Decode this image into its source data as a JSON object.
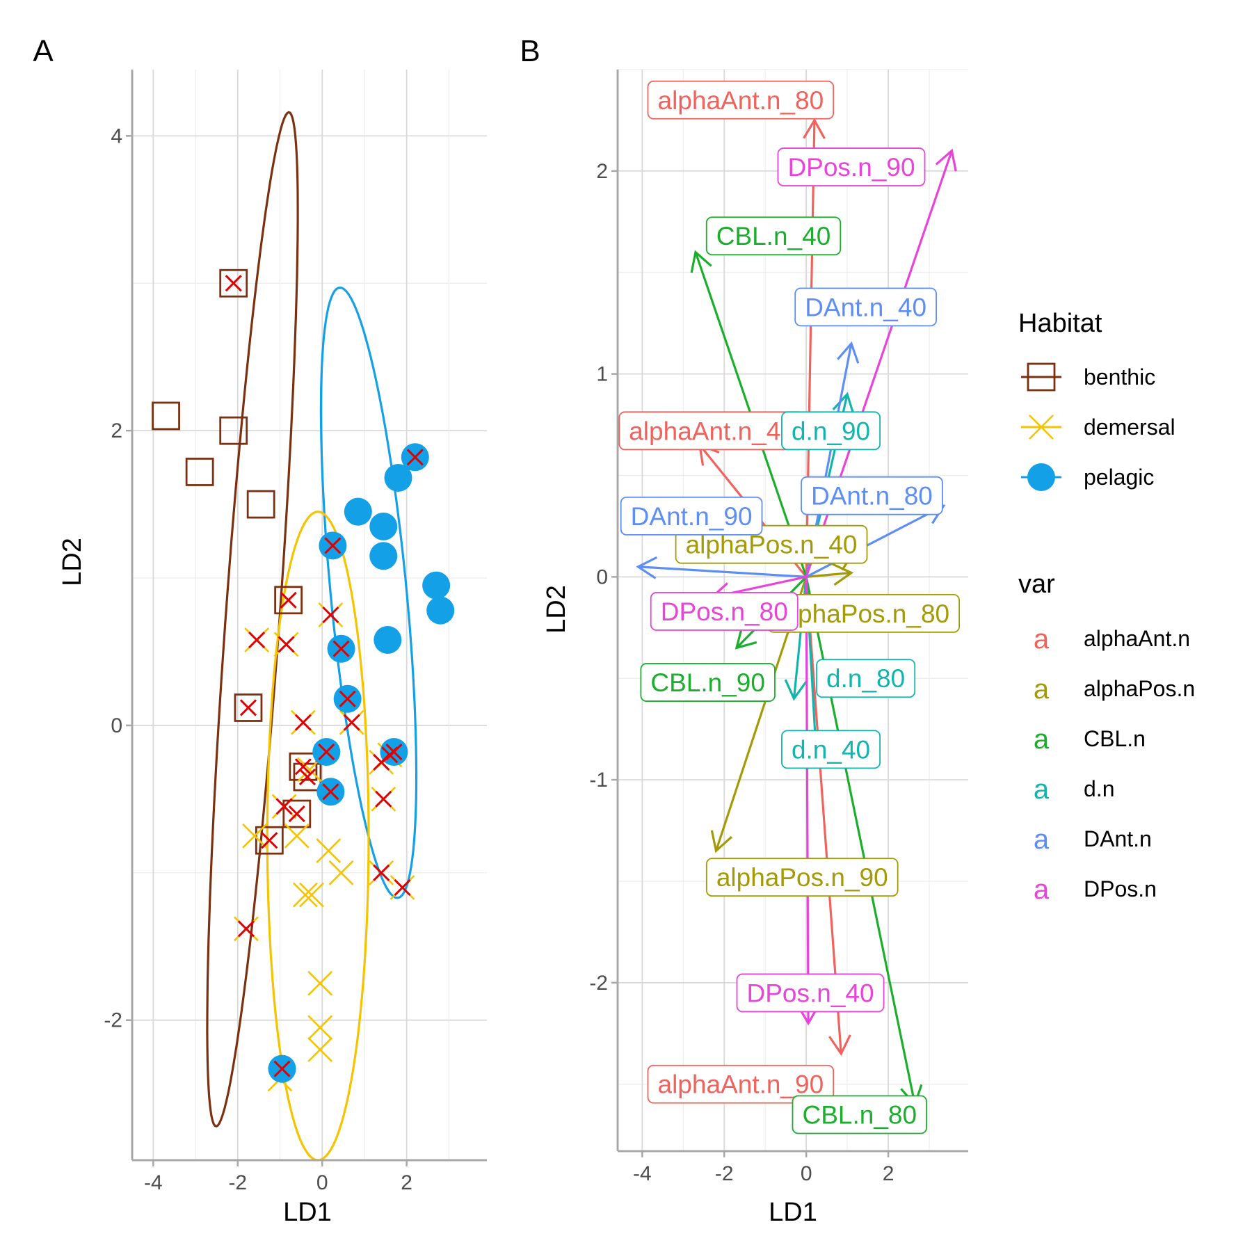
{
  "chart_data": [
    {
      "panel": "A",
      "type": "scatter",
      "xlabel": "LD1",
      "ylabel": "LD2",
      "xlim": [
        -4.5,
        3.9
      ],
      "ylim": [
        -2.95,
        4.45
      ],
      "xticks": [
        "-4",
        "-2",
        "0",
        "2"
      ],
      "xtick_values": [
        -4,
        -2,
        0,
        2
      ],
      "yticks": [
        "-2",
        "0",
        "2",
        "4"
      ],
      "ytick_values": [
        -2,
        0,
        2,
        4
      ],
      "grid": true,
      "legend": {
        "title": "Habitat",
        "entries": [
          {
            "label": "benthic",
            "color": "#7B3010",
            "shape": "square-open"
          },
          {
            "label": "demersal",
            "color": "#F5C400",
            "shape": "cross"
          },
          {
            "label": "pelagic",
            "color": "#14A0E6",
            "shape": "circle-filled"
          }
        ]
      },
      "misclassified_marker": {
        "color": "#E00000",
        "shape": "cross"
      },
      "ellipses": [
        {
          "group": "benthic",
          "color": "#7B3010",
          "center": [
            -1.65,
            0.72
          ],
          "semi_axes": [
            0.62,
            3.55
          ],
          "angle_deg": 14.5
        },
        {
          "group": "pelagic",
          "color": "#14A0E6",
          "center": [
            1.1,
            0.9
          ],
          "semi_axes": [
            0.85,
            2.2
          ],
          "angle_deg": -21.5
        },
        {
          "group": "demersal",
          "color": "#F5C400",
          "center": [
            -0.1,
            -0.75
          ],
          "semi_axes": [
            2.2,
            1.2
          ],
          "angle_deg": 90
        }
      ],
      "series": [
        {
          "name": "benthic",
          "points": [
            [
              -2.1,
              3.0,
              1
            ],
            [
              -3.7,
              2.1,
              0
            ],
            [
              -2.1,
              2.0,
              0
            ],
            [
              -2.9,
              1.72,
              0
            ],
            [
              -1.45,
              1.5,
              0
            ],
            [
              -0.8,
              0.85,
              1
            ],
            [
              -1.75,
              0.12,
              1
            ],
            [
              -0.45,
              -0.28,
              1
            ],
            [
              -0.35,
              -0.35,
              1
            ],
            [
              -0.6,
              -0.6,
              1
            ],
            [
              -1.25,
              -0.78,
              1
            ]
          ]
        },
        {
          "name": "demersal",
          "points": [
            [
              0.2,
              0.75,
              1
            ],
            [
              -1.55,
              0.58,
              1
            ],
            [
              -0.85,
              0.55,
              1
            ],
            [
              -0.45,
              0.02,
              1
            ],
            [
              0.7,
              0.02,
              1
            ],
            [
              1.4,
              -0.25,
              1
            ],
            [
              1.6,
              -0.2,
              1
            ],
            [
              -0.9,
              -0.55,
              1
            ],
            [
              1.45,
              -0.5,
              1
            ],
            [
              -0.3,
              -0.3,
              0
            ],
            [
              -1.6,
              -0.75,
              0
            ],
            [
              -0.6,
              -0.75,
              0
            ],
            [
              0.15,
              -0.85,
              0
            ],
            [
              -0.4,
              -1.15,
              0
            ],
            [
              -0.25,
              -1.15,
              0
            ],
            [
              0.45,
              -1.0,
              0
            ],
            [
              1.4,
              -1.0,
              1
            ],
            [
              1.9,
              -1.1,
              1
            ],
            [
              -1.8,
              -1.38,
              1
            ],
            [
              -0.05,
              -1.75,
              0
            ],
            [
              -0.05,
              -2.05,
              0
            ],
            [
              -0.05,
              -2.2,
              0
            ],
            [
              -1.0,
              -2.4,
              0
            ]
          ]
        },
        {
          "name": "pelagic",
          "points": [
            [
              2.2,
              1.82,
              1
            ],
            [
              1.8,
              1.68,
              0
            ],
            [
              0.85,
              1.45,
              0
            ],
            [
              1.45,
              1.35,
              0
            ],
            [
              0.25,
              1.22,
              1
            ],
            [
              1.45,
              1.15,
              0
            ],
            [
              2.7,
              0.95,
              0
            ],
            [
              2.8,
              0.78,
              0
            ],
            [
              1.55,
              0.58,
              0
            ],
            [
              0.45,
              0.52,
              1
            ],
            [
              0.6,
              0.18,
              1
            ],
            [
              1.7,
              -0.18,
              1
            ],
            [
              0.1,
              -0.18,
              1
            ],
            [
              0.2,
              -0.45,
              1
            ],
            [
              -0.95,
              -2.33,
              1
            ]
          ]
        }
      ]
    },
    {
      "panel": "B",
      "type": "vector",
      "xlabel": "LD1",
      "ylabel": "LD2",
      "xlim": [
        -4.6,
        3.95
      ],
      "ylim": [
        -2.83,
        2.5
      ],
      "xticks": [
        "-4",
        "-2",
        "0",
        "2"
      ],
      "xtick_values": [
        -4,
        -2,
        0,
        2
      ],
      "yticks": [
        "-2",
        "-1",
        "0",
        "1",
        "2"
      ],
      "ytick_values": [
        -2,
        -1,
        0,
        1,
        2
      ],
      "grid": true,
      "legend": {
        "title": "var",
        "key_glyph": "a",
        "entries": [
          {
            "label": "alphaAnt.n",
            "color": "#F0625C"
          },
          {
            "label": "alphaPos.n",
            "color": "#A39A07"
          },
          {
            "label": "CBL.n",
            "color": "#1BAE2C"
          },
          {
            "label": "d.n",
            "color": "#11B5AD"
          },
          {
            "label": "DAnt.n",
            "color": "#5E8EF3"
          },
          {
            "label": "DPos.n",
            "color": "#E844DA"
          }
        ]
      },
      "vectors": [
        {
          "label": "alphaAnt.n_80",
          "var": "alphaAnt.n",
          "x": 0.2,
          "y": 2.25,
          "label_pos": [
            -1.6,
            2.35
          ]
        },
        {
          "label": "alphaAnt.n_40",
          "var": "alphaAnt.n",
          "x": -2.6,
          "y": 0.65,
          "label_pos": [
            -2.3,
            0.72
          ]
        },
        {
          "label": "alphaAnt.n_90",
          "var": "alphaAnt.n",
          "x": 0.85,
          "y": -2.35,
          "label_pos": [
            -1.6,
            -2.5
          ]
        },
        {
          "label": "alphaPos.n_40",
          "var": "alphaPos.n",
          "x": 1.15,
          "y": 0.12,
          "label_pos": [
            -0.85,
            0.16
          ]
        },
        {
          "label": "alphaPos.n_80",
          "var": "alphaPos.n",
          "x": 1.1,
          "y": 0.02,
          "label_pos": [
            1.4,
            -0.18
          ]
        },
        {
          "label": "alphaPos.n_90",
          "var": "alphaPos.n",
          "x": -2.2,
          "y": -1.35,
          "label_pos": [
            -0.1,
            -1.48
          ]
        },
        {
          "label": "CBL.n_40",
          "var": "CBL.n",
          "x": -2.7,
          "y": 1.6,
          "label_pos": [
            -0.8,
            1.68
          ]
        },
        {
          "label": "CBL.n_90",
          "var": "CBL.n",
          "x": -1.7,
          "y": -0.35,
          "label_pos": [
            -2.4,
            -0.52
          ]
        },
        {
          "label": "CBL.n_80",
          "var": "CBL.n",
          "x": 2.65,
          "y": -2.6,
          "label_pos": [
            1.3,
            -2.65
          ]
        },
        {
          "label": "d.n_90",
          "var": "d.n",
          "x": 1.0,
          "y": 0.9,
          "label_pos": [
            0.6,
            0.72
          ]
        },
        {
          "label": "d.n_80",
          "var": "d.n",
          "x": -0.3,
          "y": -0.6,
          "label_pos": [
            1.45,
            -0.5
          ]
        },
        {
          "label": "d.n_40",
          "var": "d.n",
          "x": 0.25,
          "y": -0.9,
          "label_pos": [
            0.6,
            -0.85
          ]
        },
        {
          "label": "DAnt.n_40",
          "var": "DAnt.n",
          "x": 1.1,
          "y": 1.15,
          "label_pos": [
            1.45,
            1.33
          ]
        },
        {
          "label": "DAnt.n_80",
          "var": "DAnt.n",
          "x": 3.35,
          "y": 0.35,
          "label_pos": [
            1.6,
            0.4
          ]
        },
        {
          "label": "DAnt.n_90",
          "var": "DAnt.n",
          "x": -4.1,
          "y": 0.05,
          "label_pos": [
            -2.8,
            0.3
          ]
        },
        {
          "label": "DPos.n_90",
          "var": "DPos.n",
          "x": 3.55,
          "y": 2.1,
          "label_pos": [
            1.1,
            2.02
          ]
        },
        {
          "label": "DPos.n_80",
          "var": "DPos.n",
          "x": -2.3,
          "y": -0.1,
          "label_pos": [
            -2.0,
            -0.17
          ]
        },
        {
          "label": "DPos.n_40",
          "var": "DPos.n",
          "x": 0.05,
          "y": -2.2,
          "label_pos": [
            0.1,
            -2.05
          ]
        }
      ]
    }
  ]
}
